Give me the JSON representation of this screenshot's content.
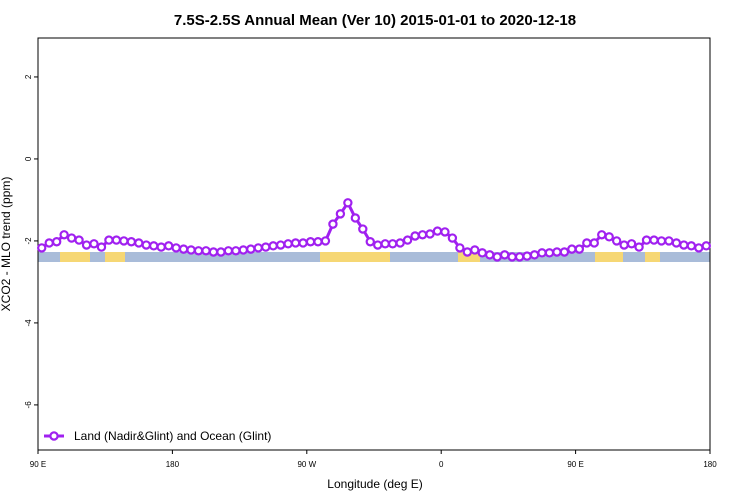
{
  "chart_data": {
    "type": "line",
    "title": "7.5S-2.5S Annual Mean (Ver 10)   2015-01-01 to 2020-12-18",
    "x_label": "Longitude (deg E)",
    "y_label": "XCO2 - MLO trend (ppm)",
    "xlim": [
      90,
      540
    ],
    "ylim": [
      -7.1,
      2.95
    ],
    "xticks": [
      {
        "value": 90,
        "label": "90 E"
      },
      180,
      {
        "value": 270,
        "label": "90 W"
      },
      {
        "value": 360,
        "label": "0"
      },
      {
        "value": 450,
        "label": "90 E"
      },
      {
        "value": 540,
        "label": "180"
      }
    ],
    "yticks": [
      -6,
      -4,
      -2,
      0,
      2
    ],
    "legend": "bottomleft",
    "x": [
      92.5,
      97.5,
      102.5,
      107.5,
      112.5,
      117.5,
      122.5,
      127.5,
      132.5,
      137.5,
      142.5,
      147.5,
      152.5,
      157.5,
      162.5,
      167.5,
      172.5,
      177.5,
      182.5,
      187.5,
      192.5,
      197.5,
      202.5,
      207.5,
      212.5,
      217.5,
      222.5,
      227.5,
      232.5,
      237.5,
      242.5,
      247.5,
      252.5,
      257.5,
      262.5,
      267.5,
      272.5,
      277.5,
      282.5,
      287.5,
      292.5,
      297.5,
      302.5,
      307.5,
      312.5,
      317.5,
      322.5,
      327.5,
      332.5,
      337.5,
      342.5,
      347.5,
      352.5,
      357.5,
      362.5,
      367.5,
      372.5,
      377.5,
      382.5,
      387.5,
      392.5,
      397.5,
      402.5,
      407.5,
      412.5,
      417.5,
      422.5,
      427.5,
      432.5,
      437.5,
      442.5,
      447.5,
      452.5,
      457.5,
      462.5,
      467.5,
      472.5,
      477.5,
      482.5,
      487.5,
      492.5,
      497.5,
      502.5,
      507.5,
      512.5,
      517.5,
      522.5,
      527.5,
      532.5,
      537.5
    ],
    "series": [
      {
        "name": "Land (Nadir&Glint) and Ocean (Glint)",
        "color": "#a020f0",
        "values": [
          -2.17,
          -2.05,
          -2.02,
          -1.85,
          -1.93,
          -1.98,
          -2.1,
          -2.07,
          -2.15,
          -1.98,
          -1.98,
          -2.0,
          -2.02,
          -2.05,
          -2.1,
          -2.12,
          -2.15,
          -2.12,
          -2.17,
          -2.2,
          -2.22,
          -2.24,
          -2.24,
          -2.27,
          -2.27,
          -2.24,
          -2.24,
          -2.22,
          -2.2,
          -2.17,
          -2.15,
          -2.12,
          -2.1,
          -2.07,
          -2.05,
          -2.05,
          -2.02,
          -2.02,
          -2.0,
          -1.59,
          -1.34,
          -1.07,
          -1.44,
          -1.71,
          -2.02,
          -2.1,
          -2.07,
          -2.07,
          -2.05,
          -1.98,
          -1.88,
          -1.85,
          -1.83,
          -1.76,
          -1.78,
          -1.93,
          -2.17,
          -2.27,
          -2.22,
          -2.29,
          -2.34,
          -2.39,
          -2.34,
          -2.39,
          -2.39,
          -2.37,
          -2.34,
          -2.29,
          -2.29,
          -2.27,
          -2.27,
          -2.2,
          -2.2,
          -2.05,
          -2.05,
          -1.85,
          -1.9,
          -2.0,
          -2.1,
          -2.07,
          -2.15,
          -1.98,
          -1.98,
          -2.0,
          -2.0,
          -2.05,
          -2.1,
          -2.12,
          -2.17,
          -2.12
        ]
      }
    ]
  }
}
